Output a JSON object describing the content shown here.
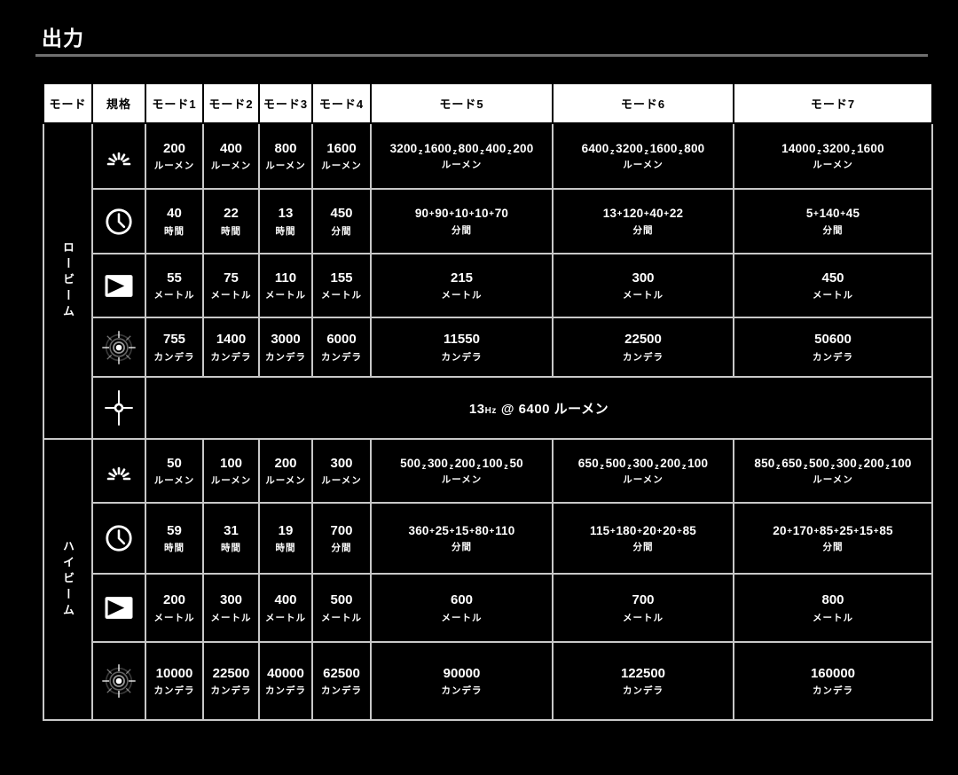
{
  "title": "出力",
  "colors": {
    "background": "#000000",
    "header_bg": "#ffffff",
    "header_text": "#000000",
    "grid_line": "#c8c8c8",
    "text": "#ffffff",
    "divider": "#707070"
  },
  "table": {
    "corner_header": "モード",
    "spec_header": "規格",
    "mode_headers": [
      "モード1",
      "モード2",
      "モード3",
      "モード4",
      "モード5",
      "モード6",
      "モード7"
    ],
    "step_separator": "z",
    "sections": [
      {
        "key": "low-beam",
        "label": "ロービーム",
        "rows": [
          {
            "icon": "brightness-icon",
            "cells": [
              {
                "v": "200",
                "u": "ルーメン"
              },
              {
                "v": "400",
                "u": "ルーメン"
              },
              {
                "v": "800",
                "u": "ルーメン"
              },
              {
                "v": "1600",
                "u": "ルーメン"
              },
              {
                "v": "3200z1600z800z400z200",
                "u": "ルーメン"
              },
              {
                "v": "6400z3200z1600z800",
                "u": "ルーメン"
              },
              {
                "v": "14000z3200z1600",
                "u": "ルーメン"
              }
            ]
          },
          {
            "icon": "clock-icon",
            "cells": [
              {
                "v": "40",
                "u": "時間"
              },
              {
                "v": "22",
                "u": "時間"
              },
              {
                "v": "13",
                "u": "時間"
              },
              {
                "v": "450",
                "u": "分間"
              },
              {
                "v": "90+90+10+10+70",
                "u": "分間"
              },
              {
                "v": "13+120+40+22",
                "u": "分間"
              },
              {
                "v": "5+140+45",
                "u": "分間"
              }
            ]
          },
          {
            "icon": "beam-distance-icon",
            "cells": [
              {
                "v": "55",
                "u": "メートル"
              },
              {
                "v": "75",
                "u": "メートル"
              },
              {
                "v": "110",
                "u": "メートル"
              },
              {
                "v": "155",
                "u": "メートル"
              },
              {
                "v": "215",
                "u": "メートル"
              },
              {
                "v": "300",
                "u": "メートル"
              },
              {
                "v": "450",
                "u": "メートル"
              }
            ]
          },
          {
            "icon": "candela-icon",
            "cells": [
              {
                "v": "755",
                "u": "カンデラ"
              },
              {
                "v": "1400",
                "u": "カンデラ"
              },
              {
                "v": "3000",
                "u": "カンデラ"
              },
              {
                "v": "6000",
                "u": "カンデラ"
              },
              {
                "v": "11550",
                "u": "カンデラ"
              },
              {
                "v": "22500",
                "u": "カンデラ"
              },
              {
                "v": "50600",
                "u": "カンデラ"
              }
            ]
          }
        ],
        "strobe_row": {
          "icon": "strobe-icon",
          "value": "13",
          "freq_unit": "Hz",
          "rest": "@ 6400 ルーメン"
        }
      },
      {
        "key": "high-beam",
        "label": "ハイビーム",
        "rows": [
          {
            "icon": "brightness-icon",
            "cells": [
              {
                "v": "50",
                "u": "ルーメン"
              },
              {
                "v": "100",
                "u": "ルーメン"
              },
              {
                "v": "200",
                "u": "ルーメン"
              },
              {
                "v": "300",
                "u": "ルーメン"
              },
              {
                "v": "500z300z200z100z50",
                "u": "ルーメン"
              },
              {
                "v": "650z500z300z200z100",
                "u": "ルーメン"
              },
              {
                "v": "850z650z500z300z200z100",
                "u": "ルーメン"
              }
            ]
          },
          {
            "icon": "clock-icon",
            "cells": [
              {
                "v": "59",
                "u": "時間"
              },
              {
                "v": "31",
                "u": "時間"
              },
              {
                "v": "19",
                "u": "時間"
              },
              {
                "v": "700",
                "u": "分間"
              },
              {
                "v": "360+25+15+80+110",
                "u": "分間"
              },
              {
                "v": "115+180+20+20+85",
                "u": "分間"
              },
              {
                "v": "20+170+85+25+15+85",
                "u": "分間"
              }
            ]
          },
          {
            "icon": "beam-distance-icon",
            "cells": [
              {
                "v": "200",
                "u": "メートル"
              },
              {
                "v": "300",
                "u": "メートル"
              },
              {
                "v": "400",
                "u": "メートル"
              },
              {
                "v": "500",
                "u": "メートル"
              },
              {
                "v": "600",
                "u": "メートル"
              },
              {
                "v": "700",
                "u": "メートル"
              },
              {
                "v": "800",
                "u": "メートル"
              }
            ]
          },
          {
            "icon": "candela-icon",
            "cells": [
              {
                "v": "10000",
                "u": "カンデラ"
              },
              {
                "v": "22500",
                "u": "カンデラ"
              },
              {
                "v": "40000",
                "u": "カンデラ"
              },
              {
                "v": "62500",
                "u": "カンデラ"
              },
              {
                "v": "90000",
                "u": "カンデラ"
              },
              {
                "v": "122500",
                "u": "カンデラ"
              },
              {
                "v": "160000",
                "u": "カンデラ"
              }
            ]
          }
        ]
      }
    ]
  }
}
